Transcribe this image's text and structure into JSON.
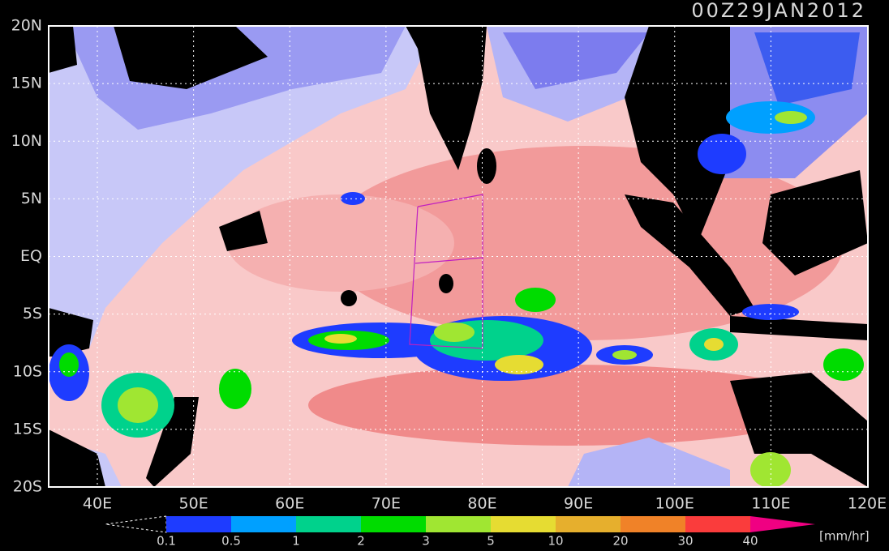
{
  "header": {
    "title": "00Z29JAN2012"
  },
  "map": {
    "lat_labels": [
      "20N",
      "15N",
      "10N",
      "5N",
      "EQ",
      "5S",
      "10S",
      "15S",
      "20S"
    ],
    "lon_labels": [
      "40E",
      "50E",
      "60E",
      "70E",
      "80E",
      "90E",
      "100E",
      "110E",
      "120E"
    ]
  },
  "colorbar": {
    "labels": [
      "0.1",
      "0.5",
      "1",
      "2",
      "3",
      "5",
      "10",
      "20",
      "30",
      "40"
    ],
    "colors": [
      "#1e3cff",
      "#00a0ff",
      "#00d28c",
      "#00dc00",
      "#a0e632",
      "#e6dc32",
      "#e6af2d",
      "#f08228",
      "#fa3c3c"
    ],
    "top_color": "#f00082",
    "unit": "[mm/hr]"
  }
}
